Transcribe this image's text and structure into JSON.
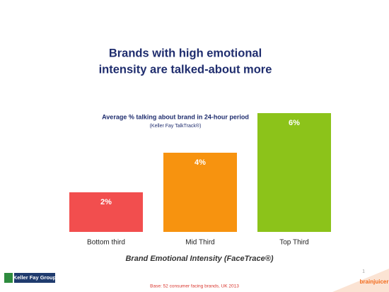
{
  "chart_data": {
    "type": "bar",
    "title": [
      "Brands with high emotional",
      "intensity are talked-about more"
    ],
    "subtitle": "Average % talking about brand in 24-hour period",
    "source": "(Keller Fay TalkTrack®)",
    "x_label": "Brand Emotional Intensity (FaceTrace®)",
    "categories": [
      "Bottom third",
      "Mid Third",
      "Top Third"
    ],
    "values": [
      2,
      4,
      6
    ],
    "value_labels": [
      "2%",
      "4%",
      "6%"
    ],
    "colors": [
      "#f24e4e",
      "#f7930f",
      "#8cc31a"
    ],
    "footnote": "Base: 52 consumer facing brands, UK 2013",
    "logos": [
      "Keller Fay Group",
      "brainjuicer"
    ],
    "page_number": "1"
  }
}
